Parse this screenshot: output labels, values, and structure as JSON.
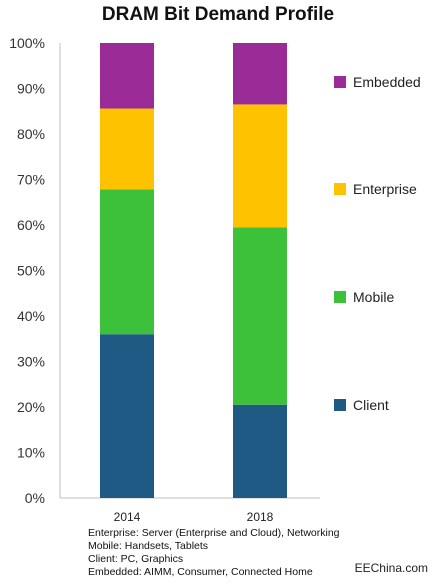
{
  "chart_data": {
    "type": "bar",
    "stacked": true,
    "title": "DRAM Bit Demand Profile",
    "categories": [
      "2014",
      "2018"
    ],
    "ylim": [
      0,
      100
    ],
    "yticks": [
      "0%",
      "10%",
      "20%",
      "30%",
      "40%",
      "50%",
      "60%",
      "70%",
      "80%",
      "90%",
      "100%"
    ],
    "series": [
      {
        "name": "Client",
        "values": [
          36,
          20.5
        ],
        "color": "#1f5a85"
      },
      {
        "name": "Mobile",
        "values": [
          31.8,
          39
        ],
        "color": "#3ec13a"
      },
      {
        "name": "Enterprise",
        "values": [
          17.8,
          27
        ],
        "color": "#ffc200"
      },
      {
        "name": "Embedded",
        "values": [
          14.4,
          13.5
        ],
        "color": "#9b2b96"
      }
    ],
    "legend": "right",
    "grid": false
  },
  "notes": [
    "Enterprise: Server (Enterprise and Cloud), Networking",
    "Mobile: Handsets, Tablets",
    "Client: PC, Graphics",
    "Embedded: AIMM, Consumer, Connected Home"
  ],
  "watermark": "EEChina.com"
}
